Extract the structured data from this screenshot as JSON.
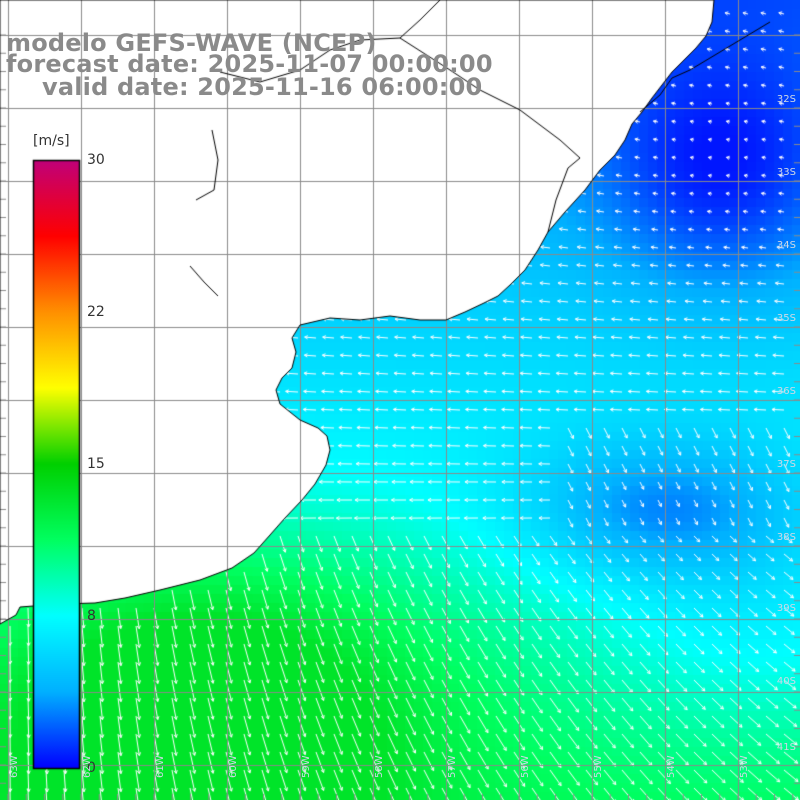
{
  "header": {
    "model": "modelo GEFS-WAVE (NCEP)",
    "forecast": "forecast date: 2025-11-07 00:00:00",
    "valid": "valid date: 2025-11-16 06:00:00"
  },
  "colorbar": {
    "unit": "[m/s]",
    "ticks": [
      "30",
      "22",
      "15",
      "8",
      "0"
    ],
    "stops": [
      "#0000ff",
      "#00b0ff",
      "#00ffff",
      "#00ff60",
      "#00d000",
      "#ffff00",
      "#ff9000",
      "#ff0000",
      "#c0007a"
    ]
  },
  "grid": {
    "lat_labels": [
      "32S",
      "33S",
      "34S",
      "35S",
      "36S",
      "37S",
      "38S",
      "39S",
      "40S",
      "41S"
    ],
    "lon_labels": [
      "63W",
      "62W",
      "61W",
      "60W",
      "59W",
      "58W",
      "57W",
      "56W",
      "55W",
      "54W",
      "53W"
    ]
  },
  "map_data": {
    "field": "wind speed (m/s) with direction arrows",
    "region": "Rio de la Plata / Uruguay / Buenos Aires coast",
    "land_color": "#ffffff",
    "coast_color": "#000000"
  }
}
